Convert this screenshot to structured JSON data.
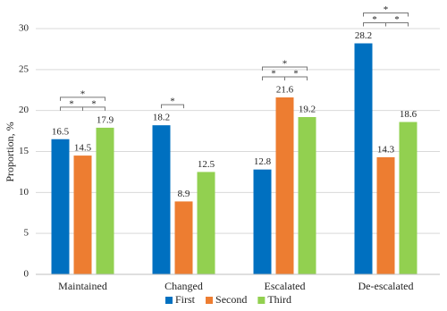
{
  "chart_data": {
    "type": "bar",
    "y_label": "Proportion, %",
    "categories": [
      "Maintained",
      "Changed",
      "Escalated",
      "De-escalated"
    ],
    "series": [
      {
        "name": "First",
        "color": "#0070c0",
        "values": [
          16.5,
          18.2,
          12.8,
          28.2
        ]
      },
      {
        "name": "Second",
        "color": "#ed7d31",
        "values": [
          14.5,
          8.9,
          21.6,
          14.3
        ]
      },
      {
        "name": "Third",
        "color": "#92d050",
        "values": [
          17.9,
          12.5,
          19.2,
          18.6
        ]
      }
    ],
    "ylim": [
      0,
      30
    ],
    "yticks": [
      0,
      5,
      10,
      15,
      20,
      25,
      30
    ],
    "grid": true,
    "legend": "bottom",
    "annotations": [
      {
        "category": 0,
        "series": [
          0,
          1
        ],
        "text": "*"
      },
      {
        "category": 0,
        "series": [
          1,
          2
        ],
        "text": "*"
      },
      {
        "category": 0,
        "series": [
          0,
          2
        ],
        "text": "*"
      },
      {
        "category": 1,
        "series": [
          0,
          1
        ],
        "text": "*"
      },
      {
        "category": 2,
        "series": [
          0,
          1
        ],
        "text": "*"
      },
      {
        "category": 2,
        "series": [
          1,
          2
        ],
        "text": "*"
      },
      {
        "category": 2,
        "series": [
          0,
          2
        ],
        "text": "*"
      },
      {
        "category": 3,
        "series": [
          0,
          1
        ],
        "text": "*"
      },
      {
        "category": 3,
        "series": [
          1,
          2
        ],
        "text": "*"
      },
      {
        "category": 3,
        "series": [
          0,
          2
        ],
        "text": "*"
      }
    ]
  }
}
